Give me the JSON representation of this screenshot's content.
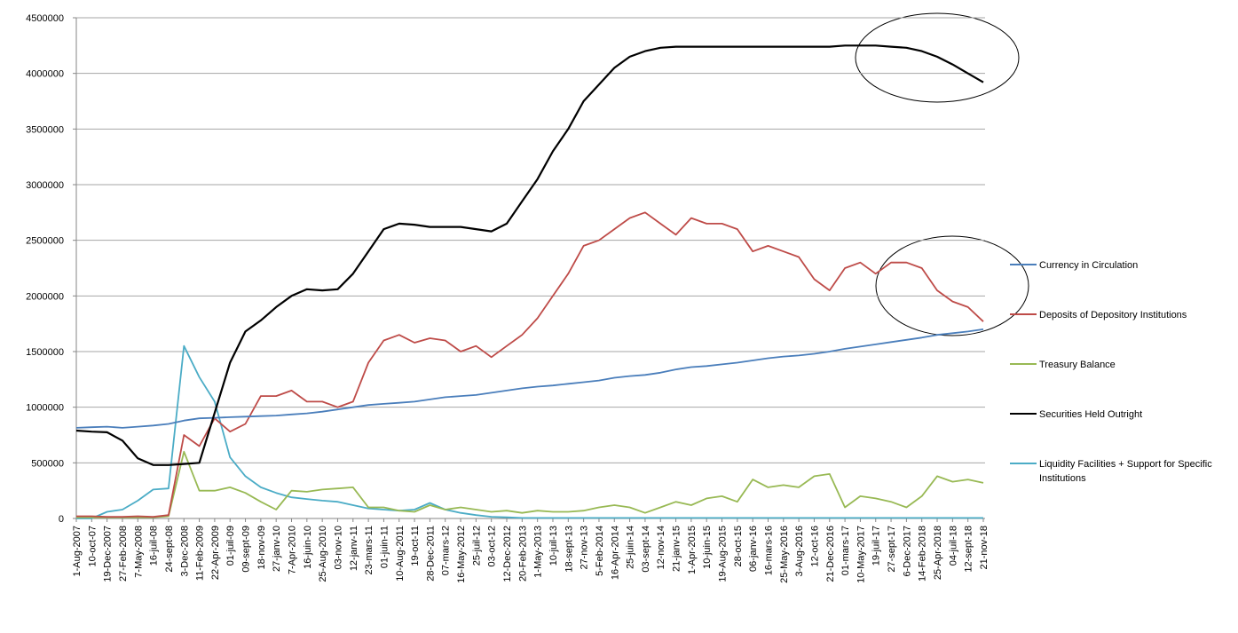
{
  "chart_data": {
    "type": "line",
    "categories": [
      "1-Aug-2007",
      "10-oct-07",
      "19-Dec-2007",
      "27-Feb-2008",
      "7-May-2008",
      "16-juil-08",
      "24-sept-08",
      "3-Dec-2008",
      "11-Feb-2009",
      "22-Apr-2009",
      "01-juil-09",
      "09-sept-09",
      "18-nov-09",
      "27-janv-10",
      "7-Apr-2010",
      "16-juin-10",
      "25-Aug-2010",
      "03-nov-10",
      "12-janv-11",
      "23-mars-11",
      "01-juin-11",
      "10-Aug-2011",
      "19-oct-11",
      "28-Dec-2011",
      "07-mars-12",
      "16-May-2012",
      "25-juil-12",
      "03-oct-12",
      "12-Dec-2012",
      "20-Feb-2013",
      "1-May-2013",
      "10-juil-13",
      "18-sept-13",
      "27-nov-13",
      "5-Feb-2014",
      "16-Apr-2014",
      "25-juin-14",
      "03-sept-14",
      "12-nov-14",
      "21-janv-15",
      "1-Apr-2015",
      "10-juin-15",
      "19-Aug-2015",
      "28-oct-15",
      "06-janv-16",
      "16-mars-16",
      "25-May-2016",
      "3-Aug-2016",
      "12-oct-16",
      "21-Dec-2016",
      "01-mars-17",
      "10-May-2017",
      "19-juil-17",
      "27-sept-17",
      "6-Dec-2017",
      "14-Feb-2018",
      "25-Apr-2018",
      "04-juil-18",
      "12-sept-18",
      "21-nov-18"
    ],
    "series": [
      {
        "name": "Currency in Circulation",
        "color": "#4a7ebb",
        "values": [
          815000,
          820000,
          825000,
          815000,
          825000,
          835000,
          850000,
          880000,
          900000,
          905000,
          910000,
          915000,
          920000,
          925000,
          935000,
          945000,
          960000,
          980000,
          1000000,
          1020000,
          1030000,
          1040000,
          1050000,
          1070000,
          1090000,
          1100000,
          1110000,
          1130000,
          1150000,
          1170000,
          1185000,
          1195000,
          1210000,
          1225000,
          1240000,
          1265000,
          1280000,
          1290000,
          1310000,
          1340000,
          1360000,
          1370000,
          1385000,
          1400000,
          1420000,
          1440000,
          1455000,
          1465000,
          1480000,
          1500000,
          1525000,
          1545000,
          1565000,
          1585000,
          1605000,
          1625000,
          1650000,
          1665000,
          1680000,
          1700000
        ]
      },
      {
        "name": "Deposits of Depository Institutions",
        "color": "#be4b48",
        "values": [
          20000,
          20000,
          15000,
          15000,
          20000,
          15000,
          30000,
          750000,
          650000,
          900000,
          780000,
          850000,
          1100000,
          1100000,
          1150000,
          1050000,
          1050000,
          1000000,
          1050000,
          1400000,
          1600000,
          1650000,
          1580000,
          1620000,
          1600000,
          1500000,
          1550000,
          1450000,
          1550000,
          1650000,
          1800000,
          2000000,
          2200000,
          2450000,
          2500000,
          2600000,
          2700000,
          2750000,
          2650000,
          2550000,
          2700000,
          2650000,
          2650000,
          2600000,
          2400000,
          2450000,
          2400000,
          2350000,
          2150000,
          2050000,
          2250000,
          2300000,
          2200000,
          2300000,
          2300000,
          2250000,
          2050000,
          1950000,
          1900000,
          1770000
        ]
      },
      {
        "name": "Treasury Balance",
        "color": "#98b954",
        "values": [
          10000,
          10000,
          10000,
          10000,
          10000,
          10000,
          20000,
          600000,
          250000,
          250000,
          280000,
          230000,
          150000,
          80000,
          250000,
          240000,
          260000,
          270000,
          280000,
          100000,
          100000,
          70000,
          60000,
          120000,
          80000,
          100000,
          80000,
          60000,
          70000,
          50000,
          70000,
          60000,
          60000,
          70000,
          100000,
          120000,
          100000,
          50000,
          100000,
          150000,
          120000,
          180000,
          200000,
          150000,
          350000,
          280000,
          300000,
          280000,
          380000,
          400000,
          100000,
          200000,
          180000,
          150000,
          100000,
          200000,
          380000,
          330000,
          350000,
          320000
        ]
      },
      {
        "name": "Securities Held Outright",
        "color": "#000000",
        "values": [
          790000,
          780000,
          775000,
          700000,
          540000,
          480000,
          480000,
          490000,
          500000,
          950000,
          1400000,
          1680000,
          1780000,
          1900000,
          2000000,
          2060000,
          2050000,
          2060000,
          2200000,
          2400000,
          2600000,
          2650000,
          2640000,
          2620000,
          2620000,
          2620000,
          2600000,
          2580000,
          2650000,
          2850000,
          3050000,
          3300000,
          3500000,
          3750000,
          3900000,
          4050000,
          4150000,
          4200000,
          4230000,
          4240000,
          4240000,
          4240000,
          4240000,
          4240000,
          4240000,
          4240000,
          4240000,
          4240000,
          4240000,
          4240000,
          4250000,
          4250000,
          4250000,
          4240000,
          4230000,
          4200000,
          4150000,
          4080000,
          4000000,
          3920000
        ]
      },
      {
        "name": "Liquidity Facilities + Support for Specific Institutions",
        "color": "#4bacc6",
        "values": [
          0,
          0,
          60000,
          80000,
          160000,
          260000,
          270000,
          1550000,
          1270000,
          1050000,
          550000,
          380000,
          280000,
          230000,
          190000,
          175000,
          160000,
          150000,
          120000,
          90000,
          80000,
          70000,
          80000,
          140000,
          80000,
          50000,
          30000,
          15000,
          10000,
          5000,
          5000,
          5000,
          5000,
          5000,
          5000,
          5000,
          5000,
          5000,
          5000,
          5000,
          5000,
          5000,
          5000,
          5000,
          5000,
          5000,
          5000,
          5000,
          5000,
          5000,
          5000,
          5000,
          5000,
          5000,
          5000,
          5000,
          5000,
          5000,
          5000,
          5000
        ]
      }
    ],
    "ylim": [
      0,
      4500000
    ],
    "yticks": [
      0,
      500000,
      1000000,
      1500000,
      2000000,
      2500000,
      3000000,
      3500000,
      4000000,
      4500000
    ],
    "grid": true
  }
}
